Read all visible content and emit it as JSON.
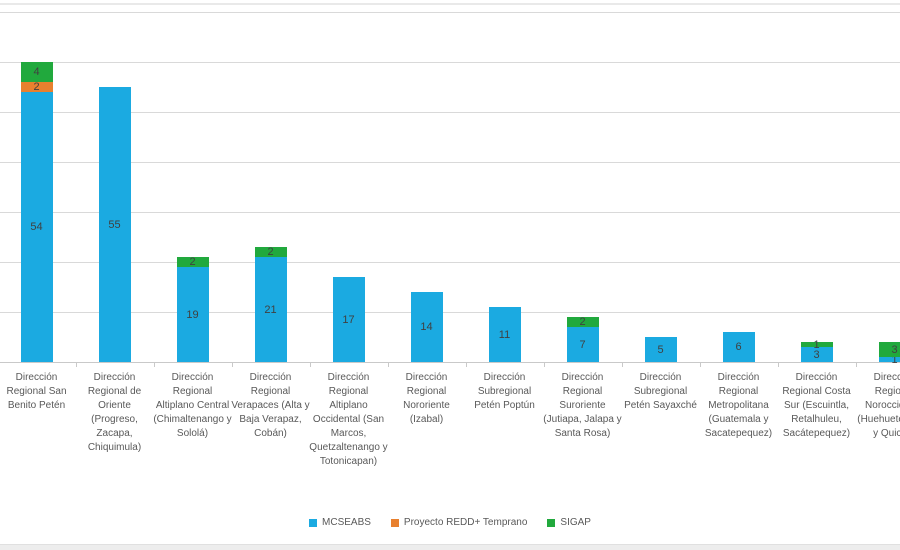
{
  "chart_data": {
    "type": "bar",
    "stacked": true,
    "title": "",
    "xlabel": "",
    "ylabel": "",
    "ylim": [
      0,
      70
    ],
    "grid_step": 10,
    "grid": true,
    "legend_position": "bottom",
    "value_labels_shown": true,
    "categories": [
      "Dirección Regional San Benito Petén",
      "Dirección Regional de Oriente (Progreso, Zacapa, Chiquimula)",
      "Dirección Regional Altiplano Central (Chimaltenango y Sololá)",
      "Dirección Regional Verapaces (Alta y Baja Verapaz, Cobán)",
      "Dirección Regional Altiplano Occidental (San Marcos, Quetzaltenango y Totonicapan)",
      "Dirección Regional Nororiente (Izabal)",
      "Dirección Subregional Petén Poptún",
      "Dirección Regional Suroriente (Jutiapa, Jalapa y Santa Rosa)",
      "Dirección Subregional Petén Sayaxché",
      "Dirección Regional Metropolitana (Guatemala y Sacatepequez)",
      "Dirección Regional Costa Sur (Escuintla, Retalhuleu, Sacátepequez)",
      "Dirección Regional Noroccidente (Huehuetenango y Quiché)"
    ],
    "series": [
      {
        "name": "MCSEABS",
        "color": "#1BAAE1",
        "values": [
          54,
          55,
          19,
          21,
          17,
          14,
          11,
          7,
          5,
          6,
          3,
          1
        ]
      },
      {
        "name": "Proyecto REDD+ Temprano",
        "color": "#E8802E",
        "values": [
          2,
          0,
          0,
          0,
          0,
          0,
          0,
          0,
          0,
          0,
          0,
          0
        ]
      },
      {
        "name": "SIGAP",
        "color": "#21A93D",
        "values": [
          4,
          0,
          2,
          2,
          0,
          0,
          0,
          2,
          0,
          0,
          1,
          3
        ]
      }
    ]
  },
  "colors": {
    "background": "#FFFFFF",
    "gridline": "#D9D9D9",
    "axis": "#C9C9C9",
    "bar_value_label": "#404040",
    "category_label": "#595959",
    "legend_text": "#595959",
    "top_line": "#E9E9E9",
    "bottom_strip": "#EDEDED"
  }
}
